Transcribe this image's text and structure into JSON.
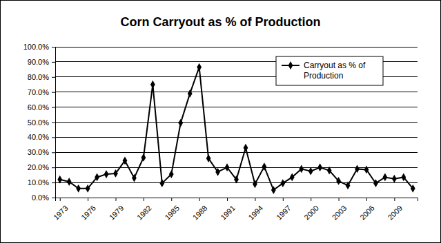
{
  "chart_data": {
    "type": "line",
    "title": "Corn Carryout as % of Production",
    "x": [
      1973,
      1974,
      1975,
      1976,
      1977,
      1978,
      1979,
      1980,
      1981,
      1982,
      1983,
      1984,
      1985,
      1986,
      1987,
      1988,
      1989,
      1990,
      1991,
      1992,
      1993,
      1994,
      1995,
      1996,
      1997,
      1998,
      1999,
      2000,
      2001,
      2002,
      2003,
      2004,
      2005,
      2006,
      2007,
      2008,
      2009,
      2010,
      2011
    ],
    "series": [
      {
        "name": "Carryout as % of Production",
        "color": "#000000",
        "marker": "diamond",
        "values": [
          12,
          10.5,
          6,
          6,
          13.5,
          15.5,
          16,
          24.5,
          13,
          26.5,
          75,
          9.5,
          15.5,
          49.5,
          69,
          86.5,
          26,
          17,
          20,
          12,
          33,
          9,
          20.5,
          5,
          9.5,
          13.5,
          19,
          17.5,
          20,
          18,
          11,
          8,
          19,
          18.5,
          9.5,
          13.5,
          12.5,
          13.5,
          6
        ]
      }
    ],
    "xlim": [
      1972.5,
      2011.5
    ],
    "xticks": [
      1973,
      1976,
      1979,
      1982,
      1985,
      1988,
      1991,
      1994,
      1997,
      2000,
      2003,
      2006,
      2009
    ],
    "ylim": [
      0,
      100
    ],
    "yticks": [
      {
        "value": 0,
        "label": "0.0%"
      },
      {
        "value": 10,
        "label": "10.0%"
      },
      {
        "value": 20,
        "label": "20.0%"
      },
      {
        "value": 30,
        "label": "30.0%"
      },
      {
        "value": 40,
        "label": "40.0%"
      },
      {
        "value": 50,
        "label": "50.0%"
      },
      {
        "value": 60,
        "label": "60.0%"
      },
      {
        "value": 70,
        "label": "70.0%"
      },
      {
        "value": 80,
        "label": "80.0%"
      },
      {
        "value": 90,
        "label": "90.0%"
      },
      {
        "value": 100,
        "label": "100.0%"
      }
    ],
    "grid": true,
    "legend": "upper right"
  }
}
